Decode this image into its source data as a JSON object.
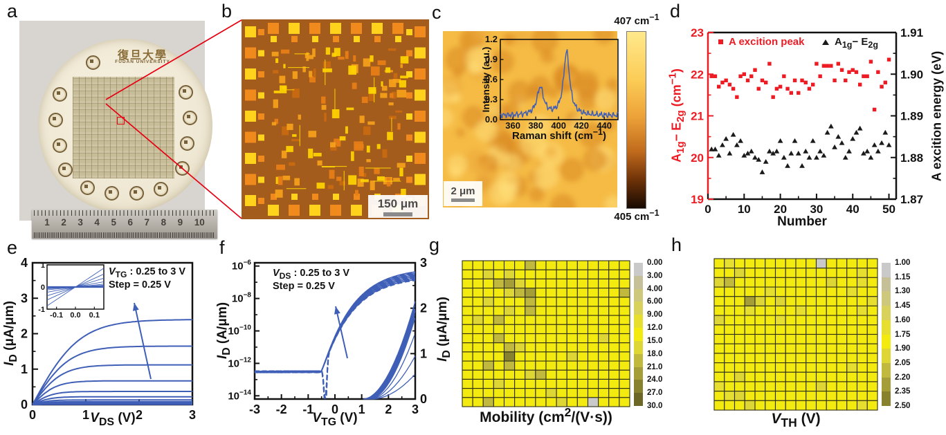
{
  "colors": {
    "curve_blue": "#3f5fb7",
    "accent_red": "#ed1c24",
    "connector_red": "#e60012"
  },
  "panels": {
    "a": {
      "label": "a",
      "university_cn": "復旦大學",
      "university_en": "FUDAN UNIVERSITY",
      "ruler_numbers": [
        "1",
        "2",
        "3",
        "4",
        "5",
        "6",
        "7",
        "8",
        "9",
        "10"
      ]
    },
    "b": {
      "label": "b",
      "scale_bar": "150 μm"
    },
    "c": {
      "label": "c",
      "scale_bar": "2 μm",
      "colorbar_top_html": "407 cm<sup>−1</sup>",
      "colorbar_bottom_html": "405 cm<sup>−1</sup>"
    },
    "d": {
      "label": "d"
    },
    "e": {
      "label": "e",
      "annotation_line1_html": "<i>V</i><sub>TG</sub> : 0.25 to 3 V",
      "annotation_line2_html": "Step = 0.25 V"
    },
    "f": {
      "label": "f",
      "annotation_line1_html": "<i>V</i><sub>DS</sub> : 0.25 to 3 V",
      "annotation_line2_html": "Step = 0.25 V"
    },
    "g": {
      "label": "g"
    },
    "h": {
      "label": "h"
    }
  },
  "chart_data": [
    {
      "id": "raman_spectrum_inset",
      "type": "line",
      "xlabel_html": "Raman shift (cm<sup>−1</sup>)",
      "ylabel_html": "Intensity (a.u.)",
      "xlim": [
        349,
        452
      ],
      "ylim": [
        0,
        1.2
      ],
      "xticks": [
        360,
        380,
        400,
        420,
        440
      ],
      "yticks": [
        0,
        0.3,
        0.6,
        0.9,
        1.2
      ],
      "line_color": "#3f5fb7",
      "baseline": 0.06,
      "peaks": [
        {
          "name": "E2g",
          "center": 384,
          "height": 0.42,
          "width": 3.5
        },
        {
          "name": "A1g",
          "center": 407,
          "height": 0.95,
          "width": 3.2
        }
      ]
    },
    {
      "id": "wafer_uniformity",
      "type": "scatter",
      "xlabel": "Number",
      "xlim": [
        0,
        52
      ],
      "xticks": [
        0,
        10,
        20,
        30,
        40,
        50
      ],
      "left_axis": {
        "label_html": "A<sub>1g</sub>− E<sub>2g</sub> (cm<sup>−1</sup>)",
        "lim": [
          19,
          23
        ],
        "ticks": [
          19,
          20,
          21,
          22,
          23
        ],
        "color": "#ed1c24"
      },
      "right_axis": {
        "label": "A excition energy (eV)",
        "lim": [
          1.87,
          1.91
        ],
        "ticks": [
          1.87,
          1.88,
          1.89,
          1.9,
          1.91
        ]
      },
      "series": [
        {
          "name_html": "A excition peak",
          "marker": "square",
          "color": "#ed1c24",
          "axis": "right",
          "y": [
            1.8995,
            1.8995,
            1.897,
            1.898,
            1.8985,
            1.8975,
            1.8965,
            1.8945,
            1.8995,
            1.9,
            1.8985,
            1.8995,
            1.901,
            1.8965,
            1.8985,
            1.898,
            1.9025,
            1.8945,
            1.8965,
            1.897,
            1.8995,
            1.8965,
            1.8955,
            1.8985,
            1.8955,
            1.8985,
            1.898,
            1.8965,
            1.8975,
            1.9025,
            1.8995,
            1.902,
            1.902,
            1.902,
            1.8985,
            1.9025,
            1.901,
            1.8985,
            1.9005,
            1.901,
            1.9005,
            1.8975,
            1.8995,
            1.8995,
            1.903,
            1.8915,
            1.9005,
            1.897,
            1.898,
            1.9035
          ]
        },
        {
          "name_html": "A<sub>1g</sub>− E<sub>2g</sub>",
          "marker": "triangle",
          "color": "#1a1a1a",
          "axis": "left",
          "y": [
            20.2,
            20.2,
            20.05,
            20.3,
            20.45,
            20.1,
            20.55,
            20.3,
            20.4,
            20.05,
            20.1,
            20.15,
            20.0,
            19.95,
            19.65,
            19.9,
            20.15,
            20.1,
            20.15,
            20.4,
            20.0,
            19.8,
            20.1,
            20.4,
            20.1,
            19.8,
            20.15,
            20.0,
            20.4,
            20.0,
            20.15,
            20.05,
            20.6,
            20.75,
            20.25,
            20.5,
            20.35,
            20.0,
            20.15,
            20.45,
            20.6,
            20.7,
            20.1,
            20.15,
            20.0,
            20.3,
            20.15,
            20.35,
            20.6,
            20.3
          ]
        }
      ]
    },
    {
      "id": "output_curves",
      "type": "line",
      "xlabel_html": "<i>V</i><sub>DS</sub> (V)",
      "ylabel_html": "<i>I</i><sub>D</sub> (μA/μm)",
      "xlim": [
        0,
        3
      ],
      "ylim": [
        0,
        4
      ],
      "xticks": [
        0,
        1,
        2,
        3
      ],
      "yticks": [
        0,
        1,
        2,
        3,
        4
      ],
      "line_color": "#3f5fb7",
      "gate_sweep": "VTG 0.25 to 3 V, step 0.25 V",
      "saturation_currents_uA_um": [
        2.4,
        1.65,
        1.12,
        0.67,
        0.37,
        0.22,
        0.13,
        0.08,
        0.05,
        0.03,
        0.015,
        0.006
      ],
      "inset": {
        "xlim": [
          -0.15,
          0.15
        ],
        "ylim": [
          -1,
          1
        ],
        "xticks": [
          -0.1,
          0,
          0.1
        ],
        "yticks": [
          1,
          0,
          -1
        ]
      }
    },
    {
      "id": "transfer_curves",
      "type": "line",
      "xlabel_html": "<i>V</i><sub>TG</sub> (V)",
      "ylabel_left_html": "<i>I</i><sub>D</sub> (A/μm)",
      "ylabel_right_html": "<i>I</i><sub>D</sub> (μA/μm)",
      "xlim": [
        -3,
        3
      ],
      "xticks": [
        -3,
        -2,
        -1,
        0,
        1,
        2,
        3
      ],
      "left_tick_exponents": [
        -6,
        -8,
        -10,
        -12,
        -14
      ],
      "right_ticks": [
        0,
        1,
        2,
        3
      ],
      "drain_sweep": "VDS 0.25 to 3 V, step 0.25 V",
      "off_current_A_um": 3e-13,
      "on_current_A_um": 1e-06,
      "right_axis_max_currents_uA_um": [
        2.15,
        2.1,
        2.05,
        2.0,
        1.97,
        1.94,
        1.9,
        1.86,
        1.8,
        1.45,
        0.95,
        0.55
      ],
      "line_color": "#3f5fb7"
    },
    {
      "id": "mobility_map",
      "type": "heatmap",
      "title_html": "Mobility (cm<sup>2</sup>/(V·s))",
      "grid": [
        16,
        16
      ],
      "colorbar_labels": [
        "0.00",
        "3.00",
        "4.00",
        "6.00",
        "9.00",
        "12.0",
        "15.0",
        "18.0",
        "21.0",
        "24.0",
        "27.0",
        "30.0"
      ],
      "thresholds": [
        3,
        4,
        6,
        9,
        12,
        15,
        18,
        21,
        24,
        27,
        30
      ],
      "colors": [
        "#c9c9c9",
        "#c6c098",
        "#cdc87c",
        "#d8d25d",
        "#e7df30",
        "#f3ea10",
        "#ded634",
        "#c0b93e",
        "#a49d38",
        "#88822e",
        "#6c6724"
      ],
      "values": [
        [
          13,
          12,
          13,
          14,
          13,
          13,
          19,
          13,
          12,
          13,
          13,
          12,
          13,
          13,
          13,
          14
        ],
        [
          13,
          14,
          15,
          13,
          17,
          13,
          13,
          12,
          13,
          13,
          14,
          13,
          13,
          13,
          13,
          13
        ],
        [
          14,
          13,
          13,
          18,
          21,
          17,
          13,
          13,
          12,
          13,
          13,
          13,
          13,
          14,
          13,
          13
        ],
        [
          13,
          14,
          13,
          13,
          17,
          19,
          22,
          13,
          13,
          13,
          13,
          12,
          13,
          13,
          13,
          19
        ],
        [
          13,
          13,
          17,
          13,
          13,
          13,
          18,
          13,
          13,
          12,
          13,
          13,
          14,
          13,
          13,
          13
        ],
        [
          13,
          14,
          13,
          13,
          15,
          13,
          19,
          14,
          13,
          13,
          12,
          13,
          13,
          13,
          14,
          13
        ],
        [
          13,
          17,
          13,
          18,
          13,
          14,
          13,
          13,
          13,
          13,
          13,
          12,
          13,
          13,
          13,
          13
        ],
        [
          13,
          13,
          14,
          13,
          13,
          12,
          13,
          13,
          14,
          13,
          13,
          13,
          12,
          13,
          13,
          14
        ],
        [
          13,
          13,
          13,
          19,
          13,
          14,
          13,
          13,
          13,
          13,
          13,
          13,
          13,
          17,
          13,
          13
        ],
        [
          14,
          13,
          13,
          13,
          18,
          17,
          13,
          13,
          12,
          13,
          13,
          13,
          13,
          13,
          14,
          13
        ],
        [
          13,
          13,
          13,
          13,
          24,
          13,
          14,
          13,
          13,
          13,
          17,
          13,
          13,
          13,
          13,
          13
        ],
        [
          13,
          14,
          18,
          13,
          19,
          13,
          13,
          13,
          13,
          13,
          13,
          12,
          14,
          13,
          13,
          13
        ],
        [
          13,
          13,
          13,
          14,
          13,
          13,
          17,
          18,
          13,
          13,
          13,
          13,
          13,
          13,
          12,
          13
        ],
        [
          13,
          13,
          13,
          17,
          13,
          14,
          13,
          13,
          13,
          12,
          13,
          13,
          13,
          14,
          13,
          13
        ],
        [
          13,
          14,
          13,
          13,
          13,
          13,
          13,
          13,
          17,
          13,
          13,
          13,
          13,
          13,
          13,
          13
        ],
        [
          13,
          13,
          18,
          13,
          14,
          13,
          13,
          13,
          13,
          17,
          13,
          13,
          2,
          13,
          13,
          14
        ]
      ]
    },
    {
      "id": "vth_map",
      "type": "heatmap",
      "title_html": "<i>V</i><sub>TH</sub> (V)",
      "grid": [
        16,
        16
      ],
      "colorbar_labels": [
        "1.00",
        "1.15",
        "1.30",
        "1.45",
        "1.60",
        "1.75",
        "1.90",
        "2.05",
        "2.20",
        "2.35",
        "2.50"
      ],
      "thresholds": [
        1.15,
        1.3,
        1.45,
        1.6,
        1.75,
        1.9,
        2.05,
        2.2,
        2.35,
        2.5
      ],
      "colors": [
        "#c9c9c9",
        "#c6c098",
        "#cdc87c",
        "#d8d25d",
        "#e7df30",
        "#f3ea10",
        "#ded634",
        "#c0b93e",
        "#a49d38",
        "#88822e"
      ],
      "values": [
        [
          1.8,
          1.7,
          1.8,
          1.8,
          1.8,
          1.8,
          1.8,
          1.8,
          1.8,
          1.8,
          1.05,
          1.8,
          1.8,
          1.8,
          1.8,
          1.8
        ],
        [
          1.8,
          1.8,
          1.95,
          1.8,
          1.85,
          1.8,
          1.8,
          1.8,
          1.8,
          1.8,
          1.8,
          1.8,
          1.8,
          1.8,
          1.7,
          1.8
        ],
        [
          1.95,
          2.1,
          1.8,
          1.8,
          1.8,
          1.8,
          1.8,
          1.8,
          1.8,
          1.8,
          1.8,
          1.95,
          1.8,
          1.85,
          1.7,
          1.8
        ],
        [
          1.8,
          1.8,
          1.8,
          1.8,
          1.8,
          1.6,
          1.8,
          1.8,
          1.8,
          1.8,
          1.8,
          1.8,
          1.8,
          1.7,
          1.8,
          1.8
        ],
        [
          1.8,
          1.8,
          1.8,
          2.2,
          1.9,
          1.8,
          2.0,
          1.8,
          1.8,
          1.8,
          1.85,
          1.8,
          1.8,
          1.8,
          1.8,
          1.7
        ],
        [
          1.8,
          1.85,
          1.8,
          1.7,
          1.8,
          1.8,
          1.8,
          1.8,
          1.65,
          1.8,
          1.8,
          1.8,
          1.85,
          1.8,
          1.7,
          1.8
        ],
        [
          1.9,
          1.8,
          1.8,
          1.8,
          1.8,
          1.8,
          1.7,
          1.8,
          1.8,
          1.8,
          1.8,
          1.8,
          1.8,
          1.8,
          1.85,
          1.8
        ],
        [
          1.8,
          1.8,
          1.8,
          1.8,
          1.8,
          1.85,
          1.8,
          1.8,
          1.8,
          1.75,
          1.8,
          1.8,
          1.8,
          1.85,
          1.8,
          1.8
        ],
        [
          1.8,
          1.8,
          1.85,
          1.8,
          1.8,
          1.8,
          1.8,
          1.8,
          1.8,
          1.8,
          1.85,
          1.8,
          1.8,
          1.8,
          1.8,
          1.8
        ],
        [
          1.8,
          1.85,
          1.8,
          1.8,
          1.8,
          1.8,
          1.8,
          1.8,
          1.75,
          1.8,
          1.8,
          1.85,
          1.8,
          1.8,
          1.85,
          1.8
        ],
        [
          1.8,
          1.8,
          1.8,
          1.8,
          1.8,
          1.8,
          1.85,
          1.8,
          1.8,
          1.8,
          1.8,
          1.8,
          1.8,
          1.8,
          1.8,
          1.8
        ],
        [
          1.8,
          1.8,
          1.8,
          1.8,
          1.8,
          1.85,
          1.8,
          1.8,
          1.8,
          1.8,
          1.8,
          1.8,
          1.85,
          1.7,
          1.85,
          1.8
        ],
        [
          1.8,
          1.85,
          2.0,
          1.8,
          1.8,
          1.8,
          1.8,
          1.85,
          1.8,
          1.8,
          1.8,
          1.8,
          1.8,
          1.8,
          1.8,
          1.8
        ],
        [
          1.7,
          1.8,
          1.8,
          1.8,
          1.85,
          1.8,
          1.8,
          1.8,
          1.8,
          1.8,
          1.95,
          1.8,
          1.8,
          1.8,
          1.8,
          1.8
        ],
        [
          1.8,
          1.7,
          1.95,
          1.8,
          1.8,
          1.85,
          1.8,
          1.8,
          1.8,
          1.8,
          1.8,
          1.8,
          1.8,
          1.8,
          1.8,
          1.8
        ],
        [
          1.8,
          1.8,
          1.8,
          1.9,
          1.8,
          1.8,
          1.8,
          1.8,
          1.85,
          1.8,
          1.8,
          1.75,
          1.8,
          1.8,
          1.7,
          1.8
        ]
      ]
    }
  ]
}
